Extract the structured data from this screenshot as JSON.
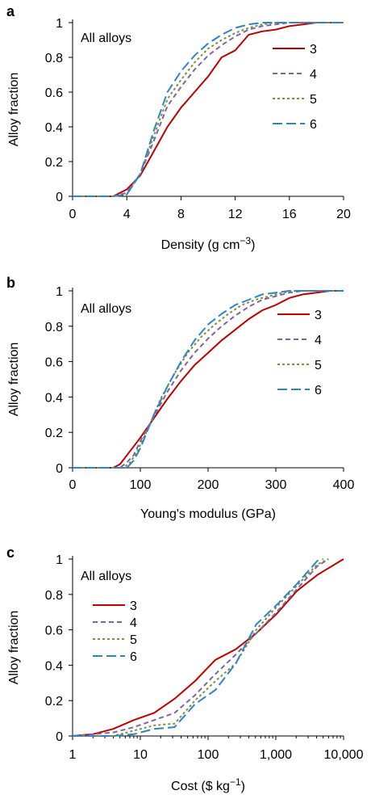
{
  "chart_data": [
    {
      "panel": "a",
      "type": "line",
      "annotation": "All alloys",
      "xlabel_main": "Density (g cm",
      "xlabel_sup": "−3",
      "xlabel_end": ")",
      "ylabel": "Alloy fraction",
      "xlim": [
        0,
        20
      ],
      "ylim": [
        0,
        1
      ],
      "xscale": "linear",
      "xticks": [
        0,
        4,
        8,
        12,
        16,
        20
      ],
      "xtick_labels": [
        "0",
        "4",
        "8",
        "12",
        "16",
        "20"
      ],
      "yticks": [
        0,
        0.2,
        0.4,
        0.6,
        0.8,
        1
      ],
      "ytick_labels": [
        "0",
        "0.2",
        "0.4",
        "0.6",
        "0.8",
        "1"
      ],
      "legend_position": "top-right",
      "series": [
        {
          "name": "3",
          "color": "#c00000",
          "dash": "",
          "points": [
            [
              0,
              0
            ],
            [
              3,
              0
            ],
            [
              4,
              0.04
            ],
            [
              5,
              0.12
            ],
            [
              6,
              0.26
            ],
            [
              7,
              0.4
            ],
            [
              8,
              0.51
            ],
            [
              9,
              0.6
            ],
            [
              10,
              0.69
            ],
            [
              11,
              0.8
            ],
            [
              12,
              0.84
            ],
            [
              13,
              0.93
            ],
            [
              14,
              0.95
            ],
            [
              15,
              0.96
            ],
            [
              16,
              0.98
            ],
            [
              17,
              0.99
            ],
            [
              18,
              1
            ],
            [
              20,
              1
            ]
          ]
        },
        {
          "name": "4",
          "color": "#8064a2",
          "dash": "6,4",
          "points": [
            [
              0,
              0
            ],
            [
              3,
              0
            ],
            [
              4,
              0.02
            ],
            [
              5,
              0.13
            ],
            [
              6,
              0.32
            ],
            [
              7,
              0.52
            ],
            [
              8,
              0.63
            ],
            [
              9,
              0.73
            ],
            [
              10,
              0.81
            ],
            [
              11,
              0.87
            ],
            [
              12,
              0.92
            ],
            [
              13,
              0.96
            ],
            [
              14,
              0.98
            ],
            [
              15,
              0.99
            ],
            [
              16,
              1
            ],
            [
              20,
              1
            ]
          ]
        },
        {
          "name": "5",
          "color": "#77933c",
          "dash": "3,3",
          "points": [
            [
              0,
              0
            ],
            [
              3,
              0
            ],
            [
              4,
              0.01
            ],
            [
              5,
              0.13
            ],
            [
              6,
              0.35
            ],
            [
              7,
              0.56
            ],
            [
              8,
              0.67
            ],
            [
              9,
              0.77
            ],
            [
              10,
              0.85
            ],
            [
              11,
              0.9
            ],
            [
              12,
              0.94
            ],
            [
              13,
              0.97
            ],
            [
              14,
              0.99
            ],
            [
              15,
              1
            ],
            [
              20,
              1
            ]
          ]
        },
        {
          "name": "6",
          "color": "#2e86c1",
          "dash": "12,5",
          "points": [
            [
              0,
              0
            ],
            [
              3,
              0
            ],
            [
              4,
              0.01
            ],
            [
              5,
              0.13
            ],
            [
              6,
              0.38
            ],
            [
              7,
              0.6
            ],
            [
              8,
              0.72
            ],
            [
              9,
              0.81
            ],
            [
              10,
              0.88
            ],
            [
              11,
              0.93
            ],
            [
              12,
              0.97
            ],
            [
              13,
              0.99
            ],
            [
              14,
              1
            ],
            [
              20,
              1
            ]
          ]
        }
      ]
    },
    {
      "panel": "b",
      "type": "line",
      "annotation": "All alloys",
      "xlabel_main": "Young's modulus (GPa)",
      "xlabel_sup": "",
      "xlabel_end": "",
      "ylabel": "Alloy fraction",
      "xlim": [
        0,
        400
      ],
      "ylim": [
        0,
        1
      ],
      "xscale": "linear",
      "xticks": [
        0,
        100,
        200,
        300,
        400
      ],
      "xtick_labels": [
        "0",
        "100",
        "200",
        "300",
        "400"
      ],
      "yticks": [
        0,
        0.2,
        0.4,
        0.6,
        0.8,
        1
      ],
      "ytick_labels": [
        "0",
        "0.2",
        "0.4",
        "0.6",
        "0.8",
        "1"
      ],
      "legend_position": "top-right",
      "series": [
        {
          "name": "3",
          "color": "#c00000",
          "dash": "",
          "points": [
            [
              0,
              0
            ],
            [
              60,
              0
            ],
            [
              70,
              0.02
            ],
            [
              80,
              0.07
            ],
            [
              100,
              0.17
            ],
            [
              120,
              0.28
            ],
            [
              140,
              0.39
            ],
            [
              160,
              0.49
            ],
            [
              180,
              0.58
            ],
            [
              200,
              0.65
            ],
            [
              220,
              0.72
            ],
            [
              240,
              0.78
            ],
            [
              260,
              0.84
            ],
            [
              280,
              0.89
            ],
            [
              300,
              0.92
            ],
            [
              320,
              0.96
            ],
            [
              340,
              0.98
            ],
            [
              360,
              0.99
            ],
            [
              380,
              1
            ],
            [
              400,
              1
            ]
          ]
        },
        {
          "name": "4",
          "color": "#8064a2",
          "dash": "6,4",
          "points": [
            [
              0,
              0
            ],
            [
              70,
              0
            ],
            [
              80,
              0.03
            ],
            [
              90,
              0.07
            ],
            [
              100,
              0.15
            ],
            [
              120,
              0.29
            ],
            [
              140,
              0.43
            ],
            [
              160,
              0.55
            ],
            [
              180,
              0.65
            ],
            [
              200,
              0.73
            ],
            [
              220,
              0.8
            ],
            [
              240,
              0.86
            ],
            [
              260,
              0.91
            ],
            [
              280,
              0.95
            ],
            [
              300,
              0.97
            ],
            [
              320,
              0.99
            ],
            [
              340,
              1
            ],
            [
              400,
              1
            ]
          ]
        },
        {
          "name": "5",
          "color": "#77933c",
          "dash": "3,3",
          "points": [
            [
              0,
              0
            ],
            [
              75,
              0
            ],
            [
              85,
              0.03
            ],
            [
              95,
              0.09
            ],
            [
              110,
              0.21
            ],
            [
              130,
              0.39
            ],
            [
              150,
              0.53
            ],
            [
              170,
              0.65
            ],
            [
              190,
              0.74
            ],
            [
              210,
              0.81
            ],
            [
              230,
              0.87
            ],
            [
              250,
              0.92
            ],
            [
              270,
              0.95
            ],
            [
              290,
              0.97
            ],
            [
              310,
              0.99
            ],
            [
              330,
              1
            ],
            [
              400,
              1
            ]
          ]
        },
        {
          "name": "6",
          "color": "#2e86c1",
          "dash": "12,5",
          "points": [
            [
              0,
              0
            ],
            [
              80,
              0
            ],
            [
              90,
              0.04
            ],
            [
              100,
              0.11
            ],
            [
              120,
              0.3
            ],
            [
              140,
              0.46
            ],
            [
              160,
              0.6
            ],
            [
              180,
              0.72
            ],
            [
              200,
              0.81
            ],
            [
              220,
              0.87
            ],
            [
              240,
              0.92
            ],
            [
              260,
              0.95
            ],
            [
              280,
              0.98
            ],
            [
              300,
              0.99
            ],
            [
              320,
              1
            ],
            [
              400,
              1
            ]
          ]
        }
      ]
    },
    {
      "panel": "c",
      "type": "line",
      "annotation": "All alloys",
      "xlabel_main": "Cost ($ kg",
      "xlabel_sup": "−1",
      "xlabel_end": ")",
      "ylabel": "Alloy fraction",
      "xlim": [
        1,
        10000
      ],
      "ylim": [
        0,
        1
      ],
      "xscale": "log",
      "xticks": [
        1,
        10,
        100,
        1000,
        10000
      ],
      "xtick_labels": [
        "1",
        "10",
        "100",
        "1,000",
        "10,000"
      ],
      "yticks": [
        0,
        0.2,
        0.4,
        0.6,
        0.8,
        1
      ],
      "ytick_labels": [
        "0",
        "0.2",
        "0.4",
        "0.6",
        "0.8",
        "1"
      ],
      "legend_position": "top-left",
      "series": [
        {
          "name": "3",
          "color": "#c00000",
          "dash": "",
          "points": [
            [
              1,
              0
            ],
            [
              2,
              0.01
            ],
            [
              4,
              0.04
            ],
            [
              8,
              0.09
            ],
            [
              16,
              0.13
            ],
            [
              32,
              0.21
            ],
            [
              64,
              0.31
            ],
            [
              128,
              0.43
            ],
            [
              256,
              0.49
            ],
            [
              512,
              0.58
            ],
            [
              1024,
              0.69
            ],
            [
              2048,
              0.82
            ],
            [
              4096,
              0.91
            ],
            [
              10000,
              1
            ]
          ]
        },
        {
          "name": "4",
          "color": "#8064a2",
          "dash": "6,4",
          "points": [
            [
              1,
              0
            ],
            [
              2,
              0.01
            ],
            [
              4,
              0.02
            ],
            [
              8,
              0.05
            ],
            [
              16,
              0.09
            ],
            [
              32,
              0.13
            ],
            [
              64,
              0.23
            ],
            [
              128,
              0.35
            ],
            [
              256,
              0.46
            ],
            [
              512,
              0.58
            ],
            [
              1024,
              0.7
            ],
            [
              2048,
              0.83
            ],
            [
              4096,
              0.96
            ],
            [
              6000,
              1
            ]
          ]
        },
        {
          "name": "5",
          "color": "#77933c",
          "dash": "3,3",
          "points": [
            [
              1,
              0
            ],
            [
              4,
              0
            ],
            [
              8,
              0.03
            ],
            [
              16,
              0.06
            ],
            [
              32,
              0.07
            ],
            [
              64,
              0.2
            ],
            [
              128,
              0.31
            ],
            [
              256,
              0.41
            ],
            [
              512,
              0.6
            ],
            [
              1024,
              0.73
            ],
            [
              2048,
              0.85
            ],
            [
              4096,
              0.97
            ],
            [
              6000,
              1
            ]
          ]
        },
        {
          "name": "6",
          "color": "#2e86c1",
          "dash": "12,5",
          "points": [
            [
              1,
              0
            ],
            [
              4,
              0
            ],
            [
              8,
              0.01
            ],
            [
              16,
              0.04
            ],
            [
              32,
              0.05
            ],
            [
              64,
              0.18
            ],
            [
              128,
              0.26
            ],
            [
              256,
              0.41
            ],
            [
              512,
              0.63
            ],
            [
              1024,
              0.74
            ],
            [
              2048,
              0.86
            ],
            [
              4096,
              0.99
            ],
            [
              5000,
              1
            ]
          ]
        }
      ]
    }
  ]
}
